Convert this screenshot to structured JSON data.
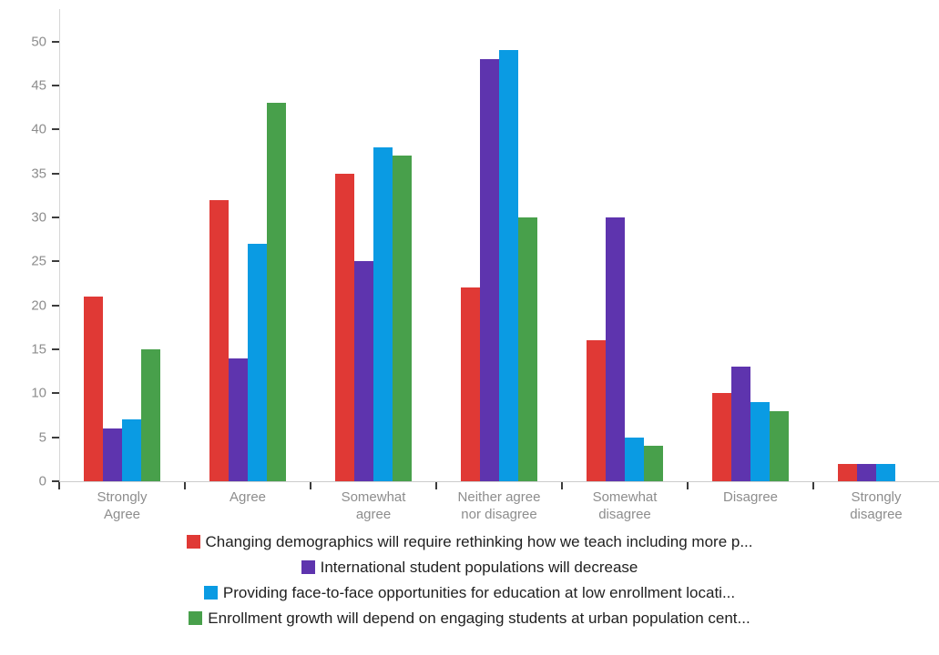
{
  "chart_data": {
    "type": "bar",
    "title": "",
    "xlabel": "",
    "ylabel": "",
    "ylim": [
      0,
      50
    ],
    "yticks": [
      0,
      5,
      10,
      15,
      20,
      25,
      30,
      35,
      40,
      45,
      50
    ],
    "grid": false,
    "legend_position": "bottom",
    "categories": [
      "Strongly\nAgree",
      "Agree",
      "Somewhat\nagree",
      "Neither agree\nnor disagree",
      "Somewhat\ndisagree",
      "Disagree",
      "Strongly\ndisagree"
    ],
    "series": [
      {
        "name": "Changing demographics will require rethinking how we teach including more p...",
        "color": "#e03935",
        "values": [
          21,
          32,
          35,
          22,
          16,
          10,
          2
        ]
      },
      {
        "name": "International student populations will decrease",
        "color": "#5e34ae",
        "values": [
          6,
          14,
          25,
          48,
          30,
          13,
          2
        ]
      },
      {
        "name": "Providing face-to-face opportunities for education at low enrollment locati...",
        "color": "#0a9be3",
        "values": [
          7,
          27,
          38,
          49,
          5,
          9,
          2
        ]
      },
      {
        "name": "Enrollment growth will depend on engaging students at urban population cent...",
        "color": "#48a04b",
        "values": [
          15,
          43,
          37,
          30,
          4,
          8,
          0
        ]
      }
    ]
  }
}
